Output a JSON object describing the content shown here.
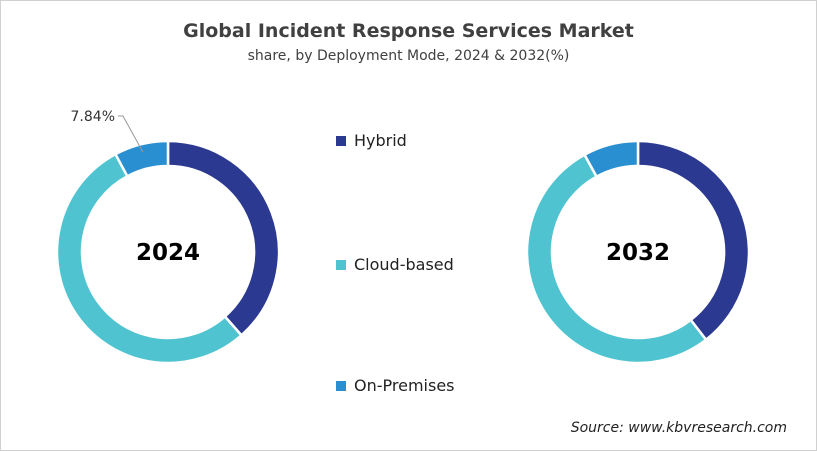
{
  "chart_data": {
    "type": "pie",
    "title": "Global Incident Response Services Market",
    "subtitle": "share, by Deployment Mode, 2024 & 2032(%)",
    "categories": [
      "Hybrid",
      "Cloud-based",
      "On-Premises"
    ],
    "colors": [
      "#2b3990",
      "#4fc3d0",
      "#2a8fd0"
    ],
    "donut": true,
    "legend_position": "center",
    "charts": [
      {
        "label": "2024",
        "values": [
          38.5,
          53.66,
          7.84
        ],
        "data_labels": {
          "On-Premises": "7.84%"
        }
      },
      {
        "label": "2032",
        "values": [
          39.5,
          52.5,
          8.0
        ]
      }
    ]
  },
  "source": "Source: www.kbvresearch.com"
}
